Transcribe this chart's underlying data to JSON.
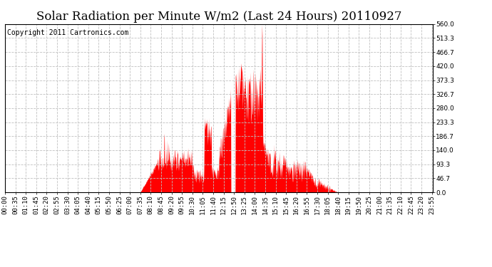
{
  "title": "Solar Radiation per Minute W/m2 (Last 24 Hours) 20110927",
  "copyright": "Copyright 2011 Cartronics.com",
  "y_ticks": [
    0.0,
    46.7,
    93.3,
    140.0,
    186.7,
    233.3,
    280.0,
    326.7,
    373.3,
    420.0,
    466.7,
    513.3,
    560.0
  ],
  "y_max": 560.0,
  "y_min": 0.0,
  "fill_color": "#FF0000",
  "line_color": "#FF0000",
  "bg_color": "#FFFFFF",
  "grid_color": "#C0C0C0",
  "title_fontsize": 12,
  "copyright_fontsize": 7,
  "tick_fontsize": 6.5
}
